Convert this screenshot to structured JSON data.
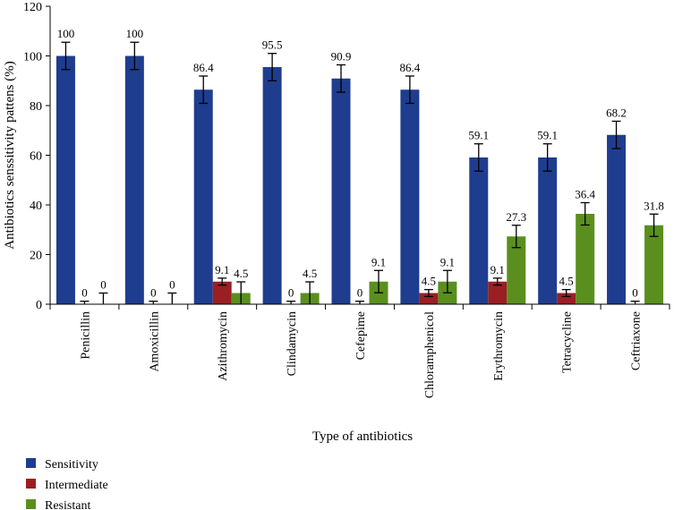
{
  "chart_data": {
    "type": "bar",
    "xlabel": "Type of antibiotics",
    "ylabel": "Antibiotics senssitivity pattens (%)",
    "ylim": [
      0,
      120
    ],
    "yticks": [
      0,
      20,
      40,
      60,
      80,
      100,
      120
    ],
    "grid": false,
    "legend_position": "bottom-left",
    "categories": [
      "Penicillin",
      "Amoxicillin",
      "Azithromycin",
      "Clindamycin",
      "Cefepime",
      "Chloramphenicol",
      "Erythromycin",
      "Tetracycline",
      "Ceftriaxone"
    ],
    "series": [
      {
        "name": "Sensitivity",
        "color": "#1f3d8f",
        "values": [
          100,
          100,
          86.4,
          95.5,
          90.9,
          86.4,
          59.1,
          59.1,
          68.2
        ],
        "labels": [
          "100",
          "100",
          "86.4",
          "95.5",
          "90.9",
          "86.4",
          "59.1",
          "59.1",
          "68.2"
        ]
      },
      {
        "name": "Intermediate",
        "color": "#9a1f22",
        "values": [
          0,
          0,
          9.1,
          0,
          0,
          4.5,
          9.1,
          4.5,
          0
        ],
        "labels": [
          "0",
          "0",
          "9.1",
          "0",
          "0",
          "4.5",
          "9.1",
          "4.5",
          "0"
        ]
      },
      {
        "name": "Resistant",
        "color": "#5a8f1f",
        "values": [
          0,
          0,
          4.5,
          4.5,
          9.1,
          9.1,
          27.3,
          36.4,
          31.8
        ],
        "labels": [
          "0",
          "0",
          "4.5",
          "4.5",
          "9.1",
          "9.1",
          "27.3",
          "36.4",
          "31.8"
        ]
      }
    ],
    "error_bars": [
      [
        5.5,
        5.5,
        5.5,
        5.5,
        5.5,
        5.5,
        5.5,
        5.5,
        5.5
      ],
      [
        1.2,
        1.2,
        1.4,
        1.2,
        1.2,
        1.4,
        1.4,
        1.4,
        1.2
      ],
      [
        4.5,
        4.5,
        4.5,
        4.5,
        4.5,
        4.5,
        4.5,
        4.5,
        4.5
      ]
    ]
  }
}
